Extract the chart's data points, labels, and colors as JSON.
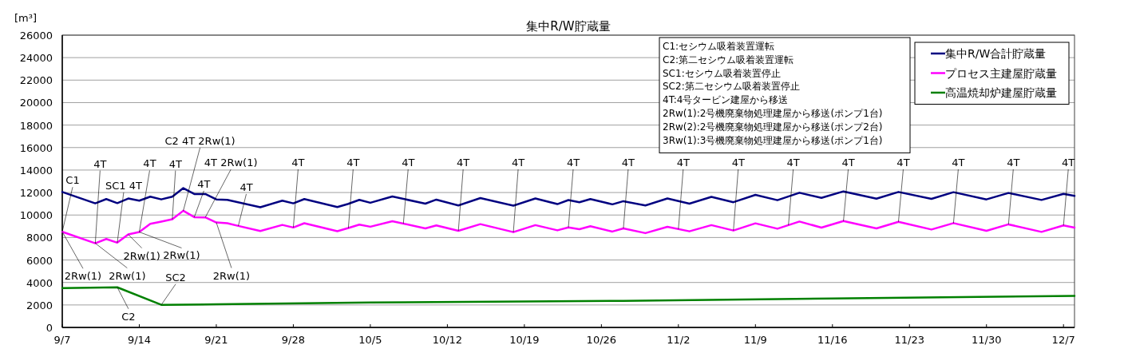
{
  "chart_data": {
    "type": "line",
    "title": "集中R/W貯蔵量",
    "ylabel": "[m³]",
    "xlim": [
      "--09-07",
      "--12-08"
    ],
    "xticks": [
      {
        "value": "--09-07",
        "label": "9/7"
      },
      {
        "value": "--09-14",
        "label": "9/14"
      },
      {
        "value": "--09-21",
        "label": "9/21"
      },
      {
        "value": "--09-28",
        "label": "9/28"
      },
      {
        "value": "--10-05",
        "label": "10/5"
      },
      {
        "value": "--10-12",
        "label": "10/12"
      },
      {
        "value": "--10-19",
        "label": "10/19"
      },
      {
        "value": "--10-26",
        "label": "10/26"
      },
      {
        "value": "--11-02",
        "label": "11/2"
      },
      {
        "value": "--11-09",
        "label": "11/9"
      },
      {
        "value": "--11-16",
        "label": "11/16"
      },
      {
        "value": "--11-23",
        "label": "11/23"
      },
      {
        "value": "--11-30",
        "label": "11/30"
      },
      {
        "value": "--12-07",
        "label": "12/7"
      }
    ],
    "ylim": [
      0,
      26000
    ],
    "yticks": [
      0,
      2000,
      4000,
      6000,
      8000,
      10000,
      12000,
      14000,
      16000,
      18000,
      20000,
      22000,
      24000,
      26000
    ],
    "grid": "y",
    "legend": "top right",
    "marker": "none",
    "line_style": "solid",
    "series": [
      {
        "name": "集中R/W合計貯蔵量",
        "color": "#000080",
        "x": [
          "--09-07",
          "--09-10",
          "--09-11",
          "--09-12",
          "--09-13",
          "--09-14",
          "--09-15",
          "--09-16",
          "--09-17",
          "--09-18",
          "--09-19",
          "--09-20",
          "--09-21",
          "--09-22",
          "--09-25",
          "--09-27",
          "--09-28",
          "--09-29",
          "--10-02",
          "--10-03",
          "--10-04",
          "--10-05",
          "--10-07",
          "--10-10",
          "--10-11",
          "--10-13",
          "--10-15",
          "--10-18",
          "--10-20",
          "--10-22",
          "--10-23",
          "--10-24",
          "--10-25",
          "--10-27",
          "--10-28",
          "--10-30",
          "--11-01",
          "--11-03",
          "--11-05",
          "--11-07",
          "--11-09",
          "--11-11",
          "--11-13",
          "--11-15",
          "--11-17",
          "--11-20",
          "--11-22",
          "--11-25",
          "--11-27",
          "--11-30",
          "--12-02",
          "--12-05",
          "--12-07",
          "--12-08"
        ],
        "values": [
          12050,
          11040,
          11420,
          11060,
          11470,
          11280,
          11630,
          11390,
          11630,
          12390,
          11870,
          11870,
          11390,
          11350,
          10690,
          11280,
          11040,
          11420,
          10710,
          10990,
          11350,
          11090,
          11650,
          11010,
          11370,
          10850,
          11510,
          10830,
          11470,
          10970,
          11330,
          11140,
          11420,
          10950,
          11230,
          10850,
          11470,
          11010,
          11610,
          11140,
          11790,
          11320,
          11980,
          11530,
          12100,
          11460,
          12050,
          11440,
          12030,
          11390,
          11960,
          11340,
          11880,
          11700
        ]
      },
      {
        "name": "プロセス主建屋貯蔵量",
        "color": "#ff00ff",
        "x": [
          "--09-07",
          "--09-10",
          "--09-11",
          "--09-12",
          "--09-13",
          "--09-14",
          "--09-15",
          "--09-16",
          "--09-17",
          "--09-18",
          "--09-19",
          "--09-20",
          "--09-21",
          "--09-22",
          "--09-23",
          "--09-25",
          "--09-27",
          "--09-28",
          "--09-29",
          "--10-02",
          "--10-03",
          "--10-04",
          "--10-05",
          "--10-07",
          "--10-10",
          "--10-11",
          "--10-13",
          "--10-15",
          "--10-18",
          "--10-20",
          "--10-22",
          "--10-23",
          "--10-24",
          "--10-25",
          "--10-27",
          "--10-28",
          "--10-30",
          "--11-01",
          "--11-03",
          "--11-05",
          "--11-07",
          "--11-09",
          "--11-11",
          "--11-13",
          "--11-15",
          "--11-17",
          "--11-20",
          "--11-22",
          "--11-25",
          "--11-27",
          "--11-30",
          "--12-02",
          "--12-05",
          "--12-07",
          "--12-08"
        ],
        "values": [
          8510,
          7490,
          7870,
          7540,
          8270,
          8490,
          9220,
          9410,
          9620,
          10380,
          9810,
          9790,
          9340,
          9270,
          9030,
          8580,
          9120,
          8890,
          9270,
          8560,
          8840,
          9150,
          8960,
          9450,
          8810,
          9070,
          8600,
          9190,
          8480,
          9100,
          8640,
          8900,
          8740,
          9000,
          8530,
          8810,
          8390,
          8950,
          8550,
          9100,
          8620,
          9260,
          8780,
          9420,
          8880,
          9470,
          8810,
          9400,
          8710,
          9280,
          8600,
          9170,
          8500,
          9070,
          8880
        ]
      },
      {
        "name": "高温焼却炉建屋貯蔵量",
        "color": "#008000",
        "x": [
          "--09-07",
          "--09-12",
          "--09-16",
          "--09-21",
          "--10-05",
          "--10-28",
          "--11-16",
          "--12-08"
        ],
        "values": [
          3500,
          3570,
          2010,
          2060,
          2220,
          2370,
          2580,
          2800
        ]
      }
    ],
    "annotations": [
      {
        "text": "C1",
        "x": "--09-07",
        "y": 8510
      },
      {
        "text": "2Rw(1)",
        "x": "--09-07",
        "y": 8510
      },
      {
        "text": "4T",
        "x": "--09-10",
        "y": 7490
      },
      {
        "text": "2Rw(1)",
        "x": "--09-10",
        "y": 7490
      },
      {
        "text": "SC1 4T",
        "x": "--09-12",
        "y": 7540
      },
      {
        "text": "2Rw(1)",
        "x": "--09-13",
        "y": 8270
      },
      {
        "text": "4T",
        "x": "--09-14",
        "y": 8490
      },
      {
        "text": "2Rw(1)",
        "x": "--09-14",
        "y": 8490
      },
      {
        "text": "4T",
        "x": "--09-17",
        "y": 9620
      },
      {
        "text": "C2 4T 2Rw(1)",
        "x": "--09-18",
        "y": 10380
      },
      {
        "text": "4T",
        "x": "--09-19",
        "y": 9810
      },
      {
        "text": "4T 2Rw(1)",
        "x": "--09-20",
        "y": 9790
      },
      {
        "text": "2Rw(1)",
        "x": "--09-21",
        "y": 9340
      },
      {
        "text": "4T",
        "x": "--09-23",
        "y": 9030
      },
      {
        "text": "SC2",
        "x": "--09-16",
        "y": 2010
      },
      {
        "text": "C2",
        "x": "--09-12",
        "y": 3570
      },
      {
        "text": "4T",
        "x": "--09-28",
        "y": 8890
      },
      {
        "text": "4T",
        "x": "--10-03",
        "y": 8840
      },
      {
        "text": "4T",
        "x": "--10-08",
        "y": 9230
      },
      {
        "text": "4T",
        "x": "--10-13",
        "y": 8600
      },
      {
        "text": "4T",
        "x": "--10-18",
        "y": 8480
      },
      {
        "text": "4T",
        "x": "--10-23",
        "y": 8900
      },
      {
        "text": "4T",
        "x": "--10-28",
        "y": 8810
      },
      {
        "text": "4T",
        "x": "--11-02",
        "y": 8750
      },
      {
        "text": "4T",
        "x": "--11-07",
        "y": 8620
      },
      {
        "text": "4T",
        "x": "--11-12",
        "y": 9100
      },
      {
        "text": "4T",
        "x": "--11-17",
        "y": 9470
      },
      {
        "text": "4T",
        "x": "--11-22",
        "y": 9400
      },
      {
        "text": "4T",
        "x": "--11-27",
        "y": 9280
      },
      {
        "text": "4T",
        "x": "--12-02",
        "y": 9170
      },
      {
        "text": "4T",
        "x": "--12-07",
        "y": 9070
      },
      "C1:セシウム吸着装置運転",
      "C2:第二セシウム吸着装置運転",
      "SC1:セシウム吸着装置停止",
      "SC2:第二セシウム吸着装置停止",
      "4T:4号タービン建屋から移送",
      "2Rw(1):2号機廃棄物処理建屋から移送(ポンプ1台)",
      "2Rw(2):2号機廃棄物処理建屋から移送(ポンプ2台)",
      "3Rw(1):3号機廃棄物処理建屋から移送(ポンプ1台)"
    ]
  }
}
